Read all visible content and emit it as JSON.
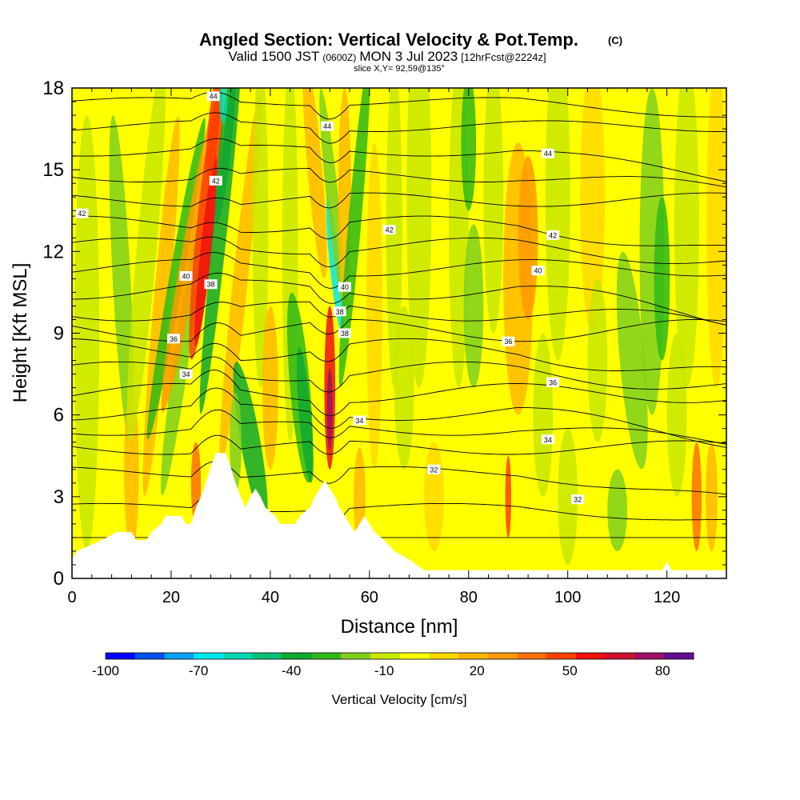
{
  "title": {
    "main": "Angled Section: Vertical Velocity & Pot.Temp.",
    "main_suffix": "(C)",
    "valid_a": "Valid 1500 JST",
    "valid_b": "(0600Z)",
    "valid_c": "MON 3 Jul 2023",
    "valid_d": "[12hrFcst@2224z]",
    "slice": "slice X,Y= 92,59@135°"
  },
  "chart_data": {
    "type": "heatmap",
    "xlabel": "Distance [nm]",
    "ylabel": "Height [Kft MSL]",
    "xlim": [
      0,
      132
    ],
    "ylim": [
      0,
      18
    ],
    "x_ticks": [
      "0",
      "20",
      "40",
      "60",
      "80",
      "100",
      "120"
    ],
    "y_ticks": [
      "0",
      "3",
      "6",
      "9",
      "12",
      "15",
      "18"
    ],
    "colorbar": {
      "label": "Vertical Velocity [cm/s]",
      "tick_labels": [
        "-100",
        "-70",
        "-40",
        "-10",
        "20",
        "50",
        "80"
      ],
      "levels": [
        -100,
        90
      ],
      "colors": [
        "#0000ff",
        "#0050f0",
        "#00a0f0",
        "#00e8f0",
        "#00d8b0",
        "#00c070",
        "#10a830",
        "#30b818",
        "#80d020",
        "#c8e800",
        "#ffff00",
        "#ffd800",
        "#ffb800",
        "#ff9a00",
        "#ff7000",
        "#ff4000",
        "#ee1010",
        "#cc1030",
        "#a01060",
        "#601090"
      ]
    },
    "contours": {
      "variable": "Potential temperature",
      "labels": [
        {
          "text": "44",
          "x": 28.5,
          "y": 17.7
        },
        {
          "text": "44",
          "x": 51.5,
          "y": 16.6
        },
        {
          "text": "44",
          "x": 96,
          "y": 15.6
        },
        {
          "text": "42",
          "x": 29,
          "y": 14.6
        },
        {
          "text": "42",
          "x": 2,
          "y": 13.4
        },
        {
          "text": "42",
          "x": 64,
          "y": 12.8
        },
        {
          "text": "42",
          "x": 97,
          "y": 12.6
        },
        {
          "text": "40",
          "x": 23,
          "y": 11.1
        },
        {
          "text": "40",
          "x": 94,
          "y": 11.3
        },
        {
          "text": "40",
          "x": 55,
          "y": 10.7
        },
        {
          "text": "38",
          "x": 28,
          "y": 10.8
        },
        {
          "text": "38",
          "x": 54,
          "y": 9.8
        },
        {
          "text": "38",
          "x": 55,
          "y": 9.0
        },
        {
          "text": "36",
          "x": 20.5,
          "y": 8.8
        },
        {
          "text": "36",
          "x": 88,
          "y": 8.7
        },
        {
          "text": "36",
          "x": 97,
          "y": 7.2
        },
        {
          "text": "34",
          "x": 23,
          "y": 7.5
        },
        {
          "text": "34",
          "x": 58,
          "y": 5.8
        },
        {
          "text": "34",
          "x": 96,
          "y": 5.1
        },
        {
          "text": "32",
          "x": 73,
          "y": 4.0
        },
        {
          "text": "32",
          "x": 102,
          "y": 2.9
        }
      ]
    },
    "terrain_heights": [
      [
        0,
        0.7
      ],
      [
        1,
        1.0
      ],
      [
        6,
        1.4
      ],
      [
        9,
        1.7
      ],
      [
        12,
        1.7
      ],
      [
        13,
        1.4
      ],
      [
        15,
        1.4
      ],
      [
        16,
        1.7
      ],
      [
        18,
        2.0
      ],
      [
        19,
        2.3
      ],
      [
        22,
        2.3
      ],
      [
        23,
        2.0
      ],
      [
        24,
        2.0
      ],
      [
        25,
        2.6
      ],
      [
        26,
        3.0
      ],
      [
        27,
        3.5
      ],
      [
        28,
        4.1
      ],
      [
        29,
        4.6
      ],
      [
        31,
        4.6
      ],
      [
        32,
        4.1
      ],
      [
        33,
        3.5
      ],
      [
        34,
        3.0
      ],
      [
        35,
        2.6
      ],
      [
        36,
        3.0
      ],
      [
        37,
        3.3
      ],
      [
        38,
        3.0
      ],
      [
        39,
        2.6
      ],
      [
        41,
        2.3
      ],
      [
        42,
        2.0
      ],
      [
        45,
        2.0
      ],
      [
        46,
        2.3
      ],
      [
        48,
        2.6
      ],
      [
        49,
        3.0
      ],
      [
        50,
        3.3
      ],
      [
        51,
        3.6
      ],
      [
        53,
        3.0
      ],
      [
        54,
        2.6
      ],
      [
        55,
        2.3
      ],
      [
        56,
        2.0
      ],
      [
        57,
        1.7
      ],
      [
        58,
        2.0
      ],
      [
        59,
        2.3
      ],
      [
        60,
        2.0
      ],
      [
        61,
        1.7
      ],
      [
        63,
        1.4
      ],
      [
        65,
        1.0
      ],
      [
        68,
        0.7
      ],
      [
        71,
        0.3
      ],
      [
        119,
        0.3
      ],
      [
        120,
        0.6
      ],
      [
        121,
        0.3
      ],
      [
        132,
        0.3
      ]
    ]
  }
}
